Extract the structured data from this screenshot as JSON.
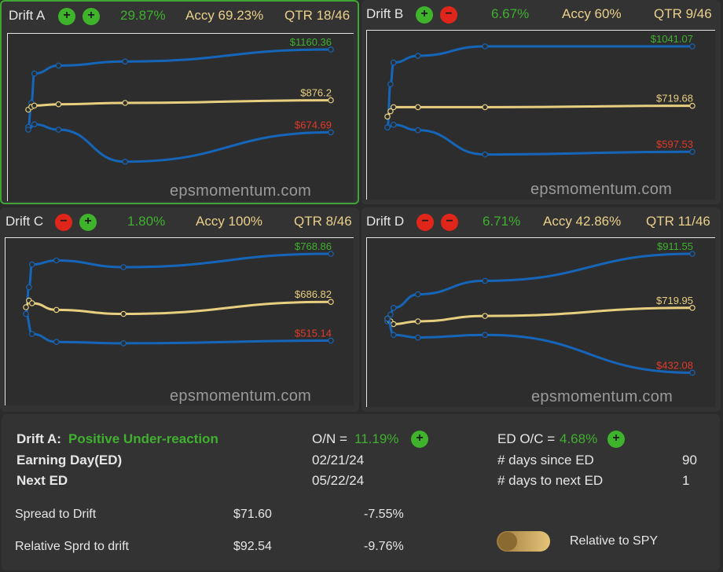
{
  "colors": {
    "blue": "#1565b8",
    "gold": "#e8cf80",
    "green": "#3fb02f",
    "red": "#e03a2a"
  },
  "watermark": "epsmomentum.com",
  "panels": [
    {
      "name": "Drift A",
      "buttons": [
        "plus",
        "plus"
      ],
      "pct": "29.87%",
      "accy": "Accy 69.23%",
      "qtr": "QTR 18/46",
      "selected": true,
      "labels": {
        "top": "$1160.36",
        "mid": "$876.2",
        "bot": "$674.69"
      },
      "chart_data": {
        "type": "line",
        "series": [
          {
            "values": [
              [
                0,
                0.42
              ],
              [
                0.01,
                0.6
              ],
              [
                0.02,
                0.82
              ],
              [
                0.1,
                0.88
              ],
              [
                0.32,
                0.91
              ],
              [
                1,
                1.0
              ]
            ]
          },
          {
            "values": [
              [
                0,
                0.55
              ],
              [
                0.01,
                0.57
              ],
              [
                0.02,
                0.58
              ],
              [
                0.1,
                0.59
              ],
              [
                0.32,
                0.6
              ],
              [
                1,
                0.62
              ]
            ]
          },
          {
            "values": [
              [
                0,
                0.4
              ],
              [
                0.02,
                0.44
              ],
              [
                0.1,
                0.4
              ],
              [
                0.32,
                0.16
              ],
              [
                1,
                0.38
              ]
            ]
          }
        ]
      }
    },
    {
      "name": "Drift B",
      "buttons": [
        "plus",
        "minus"
      ],
      "pct": "6.67%",
      "accy": "Accy 60%",
      "qtr": "QTR 9/46",
      "selected": false,
      "labels": {
        "top": "$1041.07",
        "mid": "$719.68",
        "bot": "$597.53"
      },
      "chart_data": {
        "type": "line",
        "series": [
          {
            "values": [
              [
                0,
                0.4
              ],
              [
                0.01,
                0.72
              ],
              [
                0.02,
                0.88
              ],
              [
                0.1,
                0.93
              ],
              [
                0.32,
                1.0
              ],
              [
                1,
                1.0
              ]
            ]
          },
          {
            "values": [
              [
                0,
                0.48
              ],
              [
                0.01,
                0.52
              ],
              [
                0.02,
                0.55
              ],
              [
                0.1,
                0.55
              ],
              [
                0.32,
                0.55
              ],
              [
                1,
                0.56
              ]
            ]
          },
          {
            "values": [
              [
                0,
                0.4
              ],
              [
                0.02,
                0.42
              ],
              [
                0.1,
                0.38
              ],
              [
                0.32,
                0.2
              ],
              [
                1,
                0.22
              ]
            ]
          }
        ]
      }
    },
    {
      "name": "Drift C",
      "buttons": [
        "minus",
        "plus"
      ],
      "pct": "1.80%",
      "accy": "Accy 100%",
      "qtr": "QTR 8/46",
      "selected": false,
      "labels": {
        "top": "$768.86",
        "mid": "$686.82",
        "bot": "$515.14"
      },
      "chart_data": {
        "type": "line",
        "series": [
          {
            "values": [
              [
                0,
                0.55
              ],
              [
                0.01,
                0.75
              ],
              [
                0.02,
                0.92
              ],
              [
                0.1,
                0.95
              ],
              [
                0.32,
                0.9
              ],
              [
                1,
                1.0
              ]
            ]
          },
          {
            "values": [
              [
                0,
                0.6
              ],
              [
                0.01,
                0.65
              ],
              [
                0.02,
                0.63
              ],
              [
                0.1,
                0.58
              ],
              [
                0.32,
                0.55
              ],
              [
                1,
                0.64
              ]
            ]
          },
          {
            "values": [
              [
                0,
                0.55
              ],
              [
                0.02,
                0.4
              ],
              [
                0.1,
                0.34
              ],
              [
                0.32,
                0.33
              ],
              [
                1,
                0.35
              ]
            ]
          }
        ]
      }
    },
    {
      "name": "Drift D",
      "buttons": [
        "minus",
        "minus"
      ],
      "pct": "6.71%",
      "accy": "Accy 42.86%",
      "qtr": "QTR 11/46",
      "selected": false,
      "labels": {
        "top": "$911.55",
        "mid": "$719.95",
        "bot": "$432.08"
      },
      "chart_data": {
        "type": "line",
        "series": [
          {
            "values": [
              [
                0,
                0.5
              ],
              [
                0.01,
                0.55
              ],
              [
                0.02,
                0.6
              ],
              [
                0.1,
                0.7
              ],
              [
                0.32,
                0.8
              ],
              [
                1,
                1.0
              ]
            ]
          },
          {
            "values": [
              [
                0,
                0.52
              ],
              [
                0.01,
                0.5
              ],
              [
                0.02,
                0.48
              ],
              [
                0.1,
                0.5
              ],
              [
                0.32,
                0.54
              ],
              [
                1,
                0.6
              ]
            ]
          },
          {
            "values": [
              [
                0,
                0.52
              ],
              [
                0.02,
                0.4
              ],
              [
                0.1,
                0.38
              ],
              [
                0.32,
                0.4
              ],
              [
                1,
                0.12
              ]
            ]
          }
        ]
      }
    }
  ],
  "summary": {
    "drift_label": "Drift A:",
    "drift_value": "Positive Under-reaction",
    "on_label": "O/N =",
    "on_value": "11.19%",
    "ed_oc_label": "ED O/C =",
    "ed_oc_value": "4.68%",
    "earning_day_label": "Earning Day(ED)",
    "earning_day_value": "02/21/24",
    "days_since_label": "# days since ED",
    "days_since_value": "90",
    "next_ed_label": "Next ED",
    "next_ed_value": "05/22/24",
    "days_to_next_label": "# days to next ED",
    "days_to_next_value": "1",
    "spread_label": "Spread to Drift",
    "spread_value": "$71.60",
    "spread_pct": "-7.55%",
    "rel_spread_label": "Relative Sprd to drift",
    "rel_spread_value": "$92.54",
    "rel_spread_pct": "-9.76%",
    "relative_spy_label": "Relative to SPY"
  }
}
